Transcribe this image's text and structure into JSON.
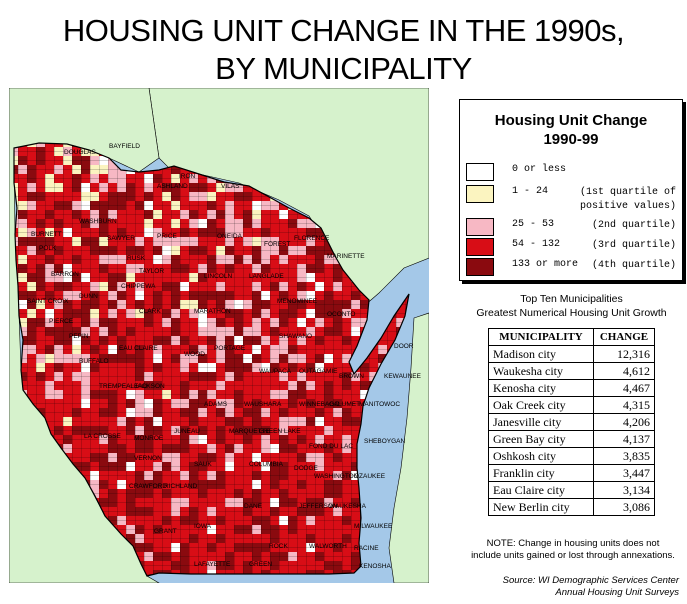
{
  "title_line1": "HOUSING UNIT CHANGE IN THE 1990s,",
  "title_line2": "BY MUNICIPALITY",
  "legend": {
    "title_line1": "Housing Unit Change",
    "title_line2": "1990-99",
    "items": [
      {
        "range": "0 or less",
        "quartile": "",
        "color": "#ffffff"
      },
      {
        "range": "1 - 24",
        "quartile": "(1st quartile of",
        "quartile2": "positive values)",
        "color": "#fbf4c0"
      },
      {
        "range": "25 - 53",
        "quartile": "(2nd quartile)",
        "color": "#f7b8c4"
      },
      {
        "range": "54 - 132",
        "quartile": "(3rd quartile)",
        "color": "#d80d16"
      },
      {
        "range": "133 or more",
        "quartile": "(4th quartile)",
        "color": "#8a0a0f"
      }
    ]
  },
  "table_title_line1": "Top Ten Municipalities",
  "table_title_line2": "Greatest Numerical Housing Unit Growth",
  "table": {
    "headers": [
      "MUNICIPALITY",
      "CHANGE"
    ],
    "rows": [
      [
        "Madison city",
        "12,316"
      ],
      [
        "Waukesha city",
        "4,612"
      ],
      [
        "Kenosha city",
        "4,467"
      ],
      [
        "Oak Creek city",
        "4,315"
      ],
      [
        "Janesville city",
        "4,206"
      ],
      [
        "Green Bay city",
        "4,137"
      ],
      [
        "Oshkosh city",
        "3,835"
      ],
      [
        "Franklin city",
        "3,447"
      ],
      [
        "Eau Claire city",
        "3,134"
      ],
      [
        "New Berlin city",
        "3,086"
      ]
    ]
  },
  "note_line1": "NOTE: Change in housing units does not",
  "note_line2": "include units gained or lost through annexations.",
  "source_line1": "Source: WI Demographic Services Center",
  "source_line2": "Annual Housing Unit Surveys",
  "map": {
    "colors": {
      "water": "#a4c8e8",
      "land": "#d6f2cc",
      "border": "#000000"
    },
    "place_labels": [
      "DOUGLAS",
      "BAYFIELD",
      "ASHLAND",
      "IRON",
      "VILAS",
      "BURNETT",
      "WASHBURN",
      "SAWYER",
      "POLK",
      "PRICE",
      "ONEIDA",
      "FLORENCE",
      "FOREST",
      "MARINETTE",
      "RUSK",
      "BARRON",
      "TAYLOR",
      "LINCOLN",
      "LANGLADE",
      "SAINT CROIX",
      "DUNN",
      "CHIPPEWA",
      "MARATHON",
      "OCONTO",
      "MENOMINEE",
      "SHAWANO",
      "PIERCE",
      "PEPIN",
      "EAU CLAIRE",
      "CLARK",
      "WOOD",
      "PORTAGE",
      "WAUPACA",
      "OUTAGAMIE",
      "BROWN",
      "KEWAUNEE",
      "DOOR",
      "BUFFALO",
      "TREMPEALEAU",
      "JACKSON",
      "ADAMS",
      "WAUSHARA",
      "WINNEBAGO",
      "CALUMET",
      "MANITOWOC",
      "LA CROSSE",
      "MONROE",
      "JUNEAU",
      "MARQUETTE",
      "GREEN LAKE",
      "FOND DU LAC",
      "SHEBOYGAN",
      "VERNON",
      "SAUK",
      "COLUMBIA",
      "DODGE",
      "WASHINGTON",
      "OZAUKEE",
      "CRAWFORD",
      "RICHLAND",
      "DANE",
      "JEFFERSON",
      "WAUKESHA",
      "MILWAUKEE",
      "GRANT",
      "IOWA",
      "LAFAYETTE",
      "GREEN",
      "ROCK",
      "WALWORTH",
      "RACINE",
      "KENOSHA"
    ]
  }
}
